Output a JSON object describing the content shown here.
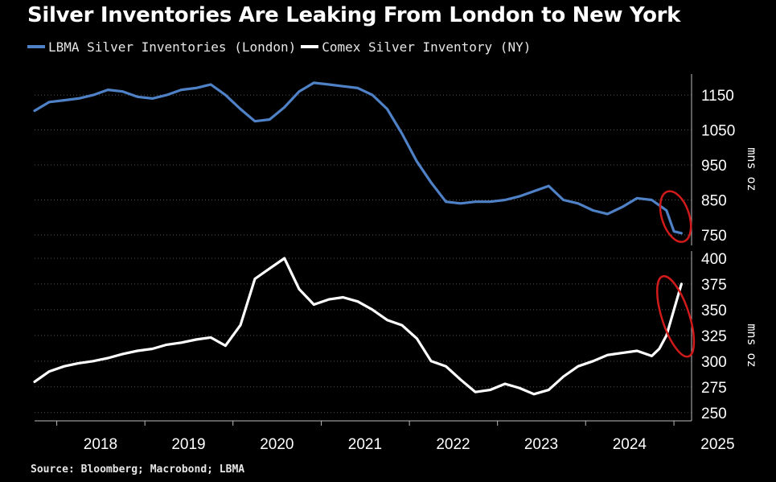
{
  "title": "Silver Inventories Are Leaking From London to New York",
  "source": "Source: Bloomberg; Macrobond; LBMA",
  "colors": {
    "lbma": "#4f81c7",
    "comex": "#ffffff",
    "highlight": "#d11a1a",
    "grid": "#555555"
  },
  "chart_data": [
    {
      "type": "line",
      "title": "",
      "xlabel": "",
      "ylabel": "mns oz",
      "ylim": [
        720,
        1210
      ],
      "yticks": [
        750,
        850,
        950,
        1050,
        1150
      ],
      "grid": true,
      "series": [
        {
          "name": "LBMA Silver Inventories (London)",
          "x": [
            "2017-10-01",
            "2017-12-01",
            "2018-02-01",
            "2018-04-01",
            "2018-06-01",
            "2018-08-01",
            "2018-10-01",
            "2018-12-01",
            "2019-02-01",
            "2019-04-01",
            "2019-06-01",
            "2019-08-01",
            "2019-10-01",
            "2019-12-01",
            "2020-02-01",
            "2020-04-01",
            "2020-06-01",
            "2020-08-01",
            "2020-10-01",
            "2020-12-01",
            "2021-02-01",
            "2021-04-01",
            "2021-06-01",
            "2021-08-01",
            "2021-10-01",
            "2021-12-01",
            "2022-02-01",
            "2022-04-01",
            "2022-06-01",
            "2022-08-01",
            "2022-10-01",
            "2022-12-01",
            "2023-02-01",
            "2023-04-01",
            "2023-06-01",
            "2023-08-01",
            "2023-10-01",
            "2023-12-01",
            "2024-02-01",
            "2024-04-01",
            "2024-06-01",
            "2024-08-01",
            "2024-10-01",
            "2024-12-01",
            "2025-01-01",
            "2025-02-01"
          ],
          "values": [
            1105,
            1130,
            1135,
            1140,
            1150,
            1165,
            1160,
            1145,
            1140,
            1150,
            1165,
            1170,
            1180,
            1150,
            1110,
            1075,
            1080,
            1115,
            1160,
            1185,
            1180,
            1175,
            1170,
            1150,
            1110,
            1040,
            960,
            900,
            845,
            840,
            845,
            845,
            850,
            860,
            875,
            890,
            850,
            840,
            820,
            810,
            830,
            855,
            850,
            820,
            760,
            755
          ]
        }
      ]
    },
    {
      "type": "line",
      "title": "",
      "xlabel": "",
      "ylabel": "mns oz",
      "ylim": [
        242,
        407
      ],
      "yticks": [
        250,
        275,
        300,
        325,
        350,
        375,
        400
      ],
      "xticks": [
        "2018",
        "2019",
        "2020",
        "2021",
        "2022",
        "2023",
        "2024",
        "2025"
      ],
      "grid": true,
      "series": [
        {
          "name": "Comex Silver Inventory (NY)",
          "x": [
            "2017-10-01",
            "2017-12-01",
            "2018-02-01",
            "2018-04-01",
            "2018-06-01",
            "2018-08-01",
            "2018-10-01",
            "2018-12-01",
            "2019-02-01",
            "2019-04-01",
            "2019-06-01",
            "2019-08-01",
            "2019-10-01",
            "2019-12-01",
            "2020-02-01",
            "2020-04-01",
            "2020-06-01",
            "2020-08-01",
            "2020-10-01",
            "2020-12-01",
            "2021-02-01",
            "2021-04-01",
            "2021-06-01",
            "2021-08-01",
            "2021-10-01",
            "2021-12-01",
            "2022-02-01",
            "2022-04-01",
            "2022-06-01",
            "2022-08-01",
            "2022-10-01",
            "2022-12-01",
            "2023-02-01",
            "2023-04-01",
            "2023-06-01",
            "2023-08-01",
            "2023-10-01",
            "2023-12-01",
            "2024-02-01",
            "2024-04-01",
            "2024-06-01",
            "2024-08-01",
            "2024-10-01",
            "2024-11-01",
            "2024-12-01",
            "2025-01-01",
            "2025-02-01"
          ],
          "values": [
            280,
            290,
            295,
            298,
            300,
            303,
            307,
            310,
            312,
            316,
            318,
            321,
            323,
            315,
            335,
            380,
            390,
            400,
            370,
            355,
            360,
            362,
            358,
            350,
            340,
            335,
            322,
            300,
            295,
            282,
            270,
            272,
            278,
            274,
            268,
            272,
            285,
            295,
            300,
            306,
            308,
            310,
            305,
            312,
            325,
            350,
            375
          ]
        }
      ]
    }
  ]
}
